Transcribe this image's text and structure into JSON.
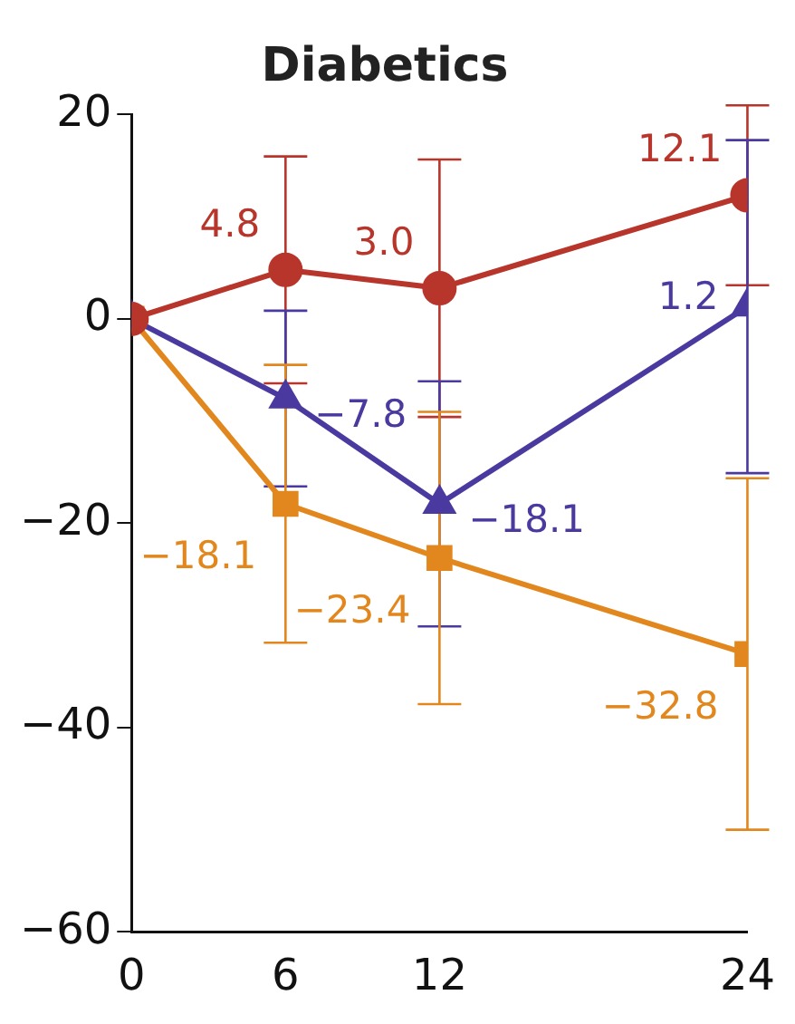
{
  "chart_data": {
    "type": "line",
    "title": "Diabetics",
    "x": [
      0,
      6,
      12,
      24
    ],
    "xlim": [
      0,
      24
    ],
    "xticks": [
      0,
      6,
      12,
      24
    ],
    "ylim": [
      -60,
      20
    ],
    "yticks": [
      -60,
      -40,
      -20,
      0,
      20
    ],
    "grid": false,
    "legend": false,
    "series": [
      {
        "color": "#b8352b",
        "marker": "circle",
        "values": [
          0,
          4.8,
          3.0,
          12.1
        ],
        "errors": [
          null,
          11.1,
          12.6,
          8.8
        ],
        "value_labels": [
          null,
          "4.8",
          "3.0",
          "12.1"
        ]
      },
      {
        "color": "#4a3aa0",
        "marker": "triangle",
        "values": [
          0,
          -7.8,
          -18.1,
          1.2
        ],
        "errors": [
          null,
          8.6,
          12,
          16.3
        ],
        "value_labels": [
          null,
          "−7.8",
          "−18.1",
          "1.2"
        ]
      },
      {
        "color": "#e2871e",
        "marker": "square",
        "values": [
          0,
          -18.1,
          -23.4,
          -32.8
        ],
        "errors": [
          null,
          13.6,
          14.3,
          17.2
        ],
        "value_labels": [
          null,
          "−18.1",
          "−23.4",
          "−32.8"
        ]
      }
    ]
  }
}
